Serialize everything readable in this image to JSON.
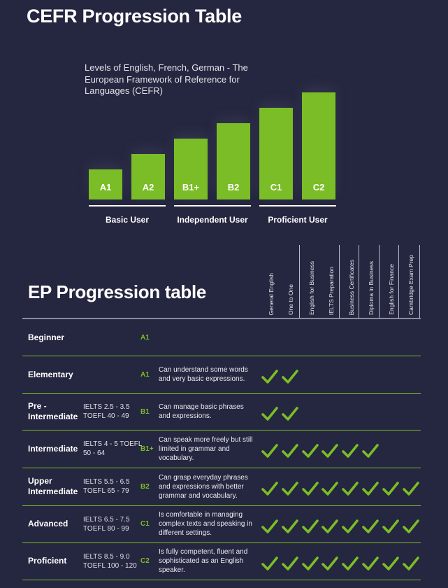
{
  "cefr": {
    "title": "CEFR Progression Table",
    "subtitle": "Levels of English, French, German - The European Framework of Reference for Languages (CEFR)",
    "levels": [
      {
        "label": "A1",
        "level": 1
      },
      {
        "label": "A2",
        "level": 2
      },
      {
        "label": "B1+",
        "level": 3
      },
      {
        "label": "B2",
        "level": 4
      },
      {
        "label": "C1",
        "level": 5
      },
      {
        "label": "C2",
        "level": 6
      }
    ],
    "groups": [
      "Basic User",
      "Independent User",
      "Proficient User"
    ]
  },
  "ep": {
    "title": "EP Progression table",
    "courses": [
      "General English",
      "One to One",
      "English for Business",
      "IELTS Preparation",
      "Business Certificates",
      "Diploma in Business",
      "English for Finance",
      "Cambridge Exam Prep"
    ],
    "rows": [
      {
        "level": "Beginner",
        "exams": "",
        "code": "A1",
        "description": "",
        "checks": 0
      },
      {
        "level": "Elementary",
        "exams": "",
        "code": "A1",
        "description": "Can understand some words and very basic expressions.",
        "checks": 2
      },
      {
        "level": "Pre - Intermediate",
        "exams": "IELTS 2.5 - 3.5 TOEFL 40 - 49",
        "code": "B1",
        "description": "Can manage basic phrases and expressions.",
        "checks": 2
      },
      {
        "level": "Intermediate",
        "exams": "IELTS 4 - 5 TOEFL 50 - 64",
        "code": "B1+",
        "description": "Can speak more freely but still limited in grammar and vocabulary.",
        "checks": 6
      },
      {
        "level": "Upper Intermediate",
        "exams": "IELTS 5.5 - 6.5 TOEFL 65 - 79",
        "code": "B2",
        "description": "Can grasp everyday phrases and expressions with better grammar and vocabulary.",
        "checks": 8
      },
      {
        "level": "Advanced",
        "exams": "IELTS 6.5 - 7.5 TOEFL 80 - 99",
        "code": "C1",
        "description": "Is comfortable in managing complex texts and speaking in different settings.",
        "checks": 8
      },
      {
        "level": "Proficient",
        "exams": "IELTS 8.5 - 9.0 TOEFL 100 - 120",
        "code": "C2",
        "description": "Is fully competent, fluent and sophisticated as an English speaker.",
        "checks": 8
      }
    ]
  },
  "colors": {
    "background": "#25263f",
    "accent": "#7bbd26",
    "text": "#ffffff"
  },
  "icons": {
    "check": "check-icon"
  }
}
